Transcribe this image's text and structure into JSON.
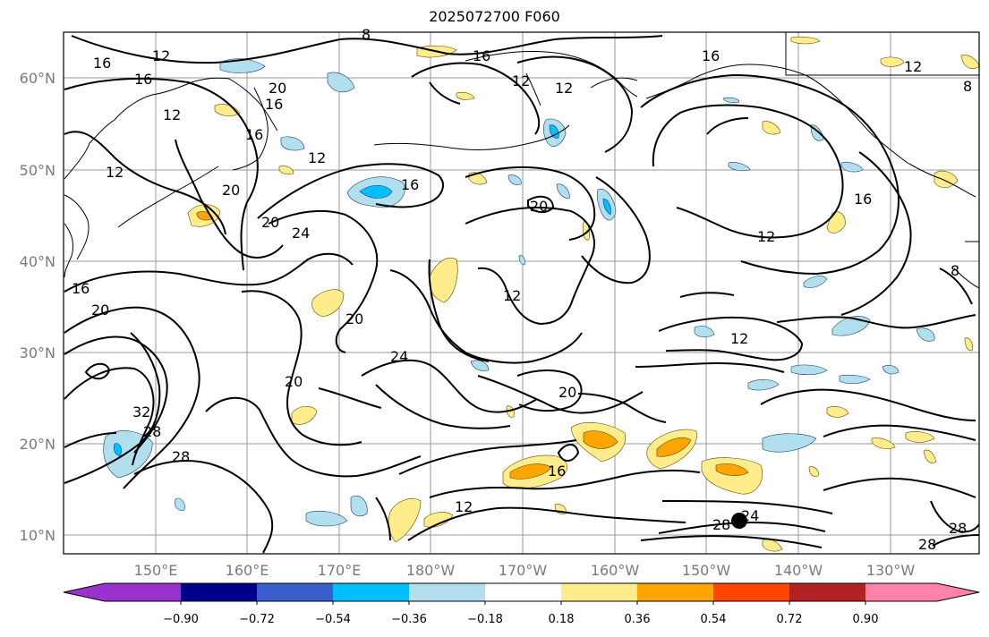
{
  "title": "2025072700 F060",
  "lat_labels": [
    "60°N",
    "50°N",
    "40°N",
    "30°N",
    "20°N",
    "10°N"
  ],
  "lon_labels": [
    "150°E",
    "160°E",
    "170°E",
    "180°W",
    "170°W",
    "160°W",
    "150°W",
    "140°W",
    "130°W"
  ],
  "colorbar": {
    "ticks": [
      "−0.90",
      "−0.72",
      "−0.54",
      "−0.36",
      "−0.18",
      "0.18",
      "0.36",
      "0.54",
      "0.72",
      "0.90"
    ],
    "colors": [
      "#9a32cd",
      "#00008b",
      "#3a5fcd",
      "#00bfff",
      "#b2dfee",
      "#ffffff",
      "#ffec8b",
      "#ffa500",
      "#ff4500",
      "#b22222",
      "#ff82ab"
    ]
  },
  "contour_labels": [
    "16",
    "12",
    "16",
    "12",
    "16",
    "12",
    "16",
    "12",
    "16",
    "12",
    "12",
    "16",
    "20",
    "16",
    "20",
    "24",
    "20",
    "20",
    "12",
    "12",
    "16",
    "12",
    "20",
    "24",
    "20",
    "20",
    "32",
    "28",
    "28",
    "16",
    "12",
    "24",
    "28",
    "28",
    "28",
    "8",
    "8",
    "8",
    "16",
    "20",
    "12"
  ],
  "legend_colors": {
    "positive_light": "#ffec8b",
    "positive_orange": "#ffa500",
    "negative_light": "#b2dfee",
    "negative_cyan": "#00bfff"
  }
}
